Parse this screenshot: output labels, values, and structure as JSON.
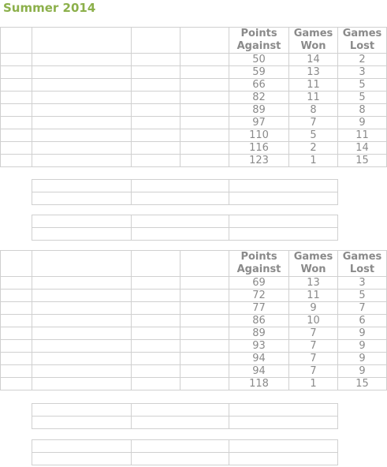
{
  "page": {
    "title": "Summer 2014"
  },
  "tables": [
    {
      "headers": {
        "points_against": "Points Against",
        "games_won": "Games Won",
        "games_lost": "Games Lost"
      },
      "rows": [
        {
          "points_against": "50",
          "games_won": "14",
          "games_lost": "2"
        },
        {
          "points_against": "59",
          "games_won": "13",
          "games_lost": "3"
        },
        {
          "points_against": "66",
          "games_won": "11",
          "games_lost": "5"
        },
        {
          "points_against": "82",
          "games_won": "11",
          "games_lost": "5"
        },
        {
          "points_against": "89",
          "games_won": "8",
          "games_lost": "8"
        },
        {
          "points_against": "97",
          "games_won": "7",
          "games_lost": "9"
        },
        {
          "points_against": "110",
          "games_won": "5",
          "games_lost": "11"
        },
        {
          "points_against": "116",
          "games_won": "2",
          "games_lost": "14"
        },
        {
          "points_against": "123",
          "games_won": "1",
          "games_lost": "15"
        }
      ]
    },
    {
      "headers": {
        "points_against": "Points Against",
        "games_won": "Games Won",
        "games_lost": "Games Lost"
      },
      "rows": [
        {
          "points_against": "69",
          "games_won": "13",
          "games_lost": "3"
        },
        {
          "points_against": "72",
          "games_won": "11",
          "games_lost": "5"
        },
        {
          "points_against": "77",
          "games_won": "9",
          "games_lost": "7"
        },
        {
          "points_against": "86",
          "games_won": "10",
          "games_lost": "6"
        },
        {
          "points_against": "89",
          "games_won": "7",
          "games_lost": "9"
        },
        {
          "points_against": "93",
          "games_won": "7",
          "games_lost": "9"
        },
        {
          "points_against": "94",
          "games_won": "7",
          "games_lost": "9"
        },
        {
          "points_against": "94",
          "games_won": "7",
          "games_lost": "9"
        },
        {
          "points_against": "118",
          "games_won": "1",
          "games_lost": "15"
        }
      ]
    }
  ],
  "colors": {
    "title": "#8cb04b",
    "text": "#8a8a8a",
    "border": "#d0d0d0"
  }
}
